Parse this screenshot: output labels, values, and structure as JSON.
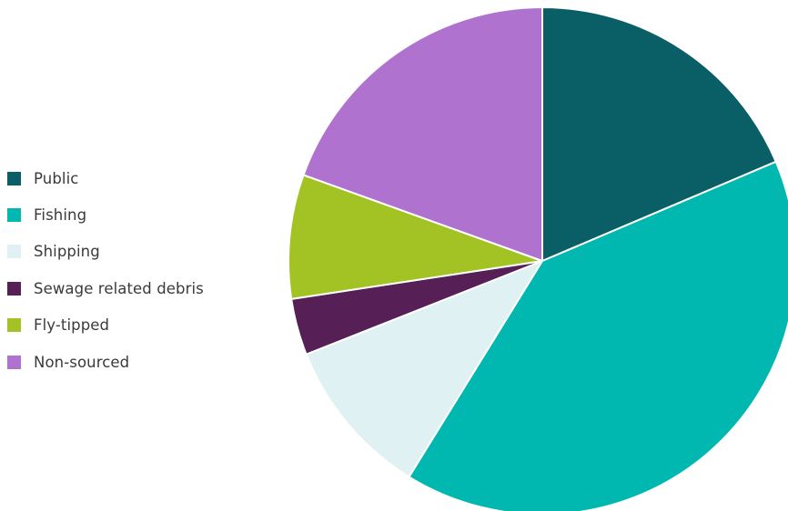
{
  "chart_data": {
    "type": "pie",
    "title": "",
    "legend_position": "left",
    "start_angle_deg": 0,
    "direction": "clockwise",
    "slices": [
      {
        "label": "Public",
        "value": 18.6,
        "color": "#0a5f67"
      },
      {
        "label": "Fishing",
        "value": 40.2,
        "color": "#00b8b0"
      },
      {
        "label": "Shipping",
        "value": 10.2,
        "color": "#dff1f3"
      },
      {
        "label": "Sewage related debris",
        "value": 3.6,
        "color": "#561f56"
      },
      {
        "label": "Fly-tipped",
        "value": 7.9,
        "color": "#a3c223"
      },
      {
        "label": "Non-sourced",
        "value": 19.5,
        "color": "#af72cf"
      }
    ]
  }
}
